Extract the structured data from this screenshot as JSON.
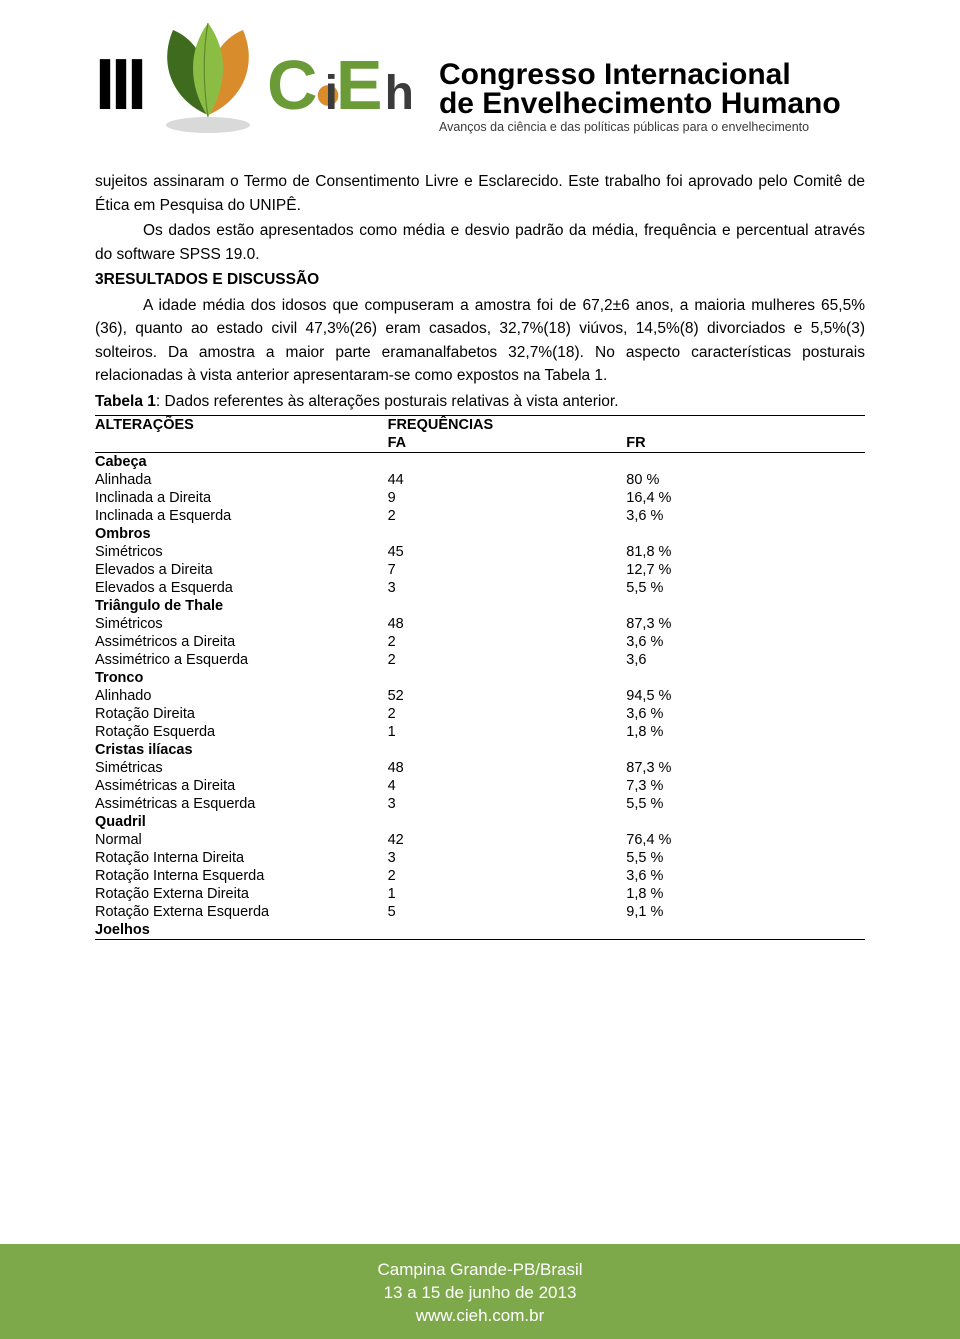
{
  "header": {
    "roman": "III",
    "brand_c": "C",
    "brand_i_lower": "i",
    "brand_e": "E",
    "brand_h": "h",
    "congress_line1": "Congresso Internacional",
    "congress_line2": "de Envelhecimento Humano",
    "congress_sub": "Avanços da ciência e das políticas públicas para o envelhecimento",
    "leaf_colors": {
      "green_dark": "#3f6b1f",
      "green_light": "#8bbd45",
      "orange": "#d98c2b",
      "shadow": "#bfbfbf"
    }
  },
  "body": {
    "p1": "sujeitos assinaram o Termo de Consentimento Livre e Esclarecido. Este trabalho foi aprovado pelo Comitê de Ética em Pesquisa do UNIPÊ.",
    "p2": "Os dados estão apresentados como média e desvio padrão da média, frequência e percentual através do software SPSS 19.0.",
    "section_title": "3RESULTADOS E DISCUSSÃO",
    "p3": "A idade média dos idosos que compuseram a amostra foi de 67,2±6 anos, a maioria mulheres 65,5%(36), quanto ao estado civil 47,3%(26) eram casados, 32,7%(18) viúvos, 14,5%(8) divorciados e 5,5%(3) solteiros. Da amostra a maior parte eramanalfabetos 32,7%(18). No aspecto características posturais relacionadas à vista anterior apresentaram-se como expostos na Tabela 1.",
    "table_caption_bold": "Tabela 1",
    "table_caption_rest": ": Dados referentes às alterações posturais relativas à vista anterior."
  },
  "table": {
    "header_alt": "ALTERAÇÕES",
    "header_freq": "FREQUÊNCIAS",
    "header_fa": "FA",
    "header_fr": "FR",
    "groups": [
      {
        "name": "Cabeça",
        "rows": [
          {
            "label": "Alinhada",
            "fa": "44",
            "fr": "80 %"
          },
          {
            "label": "Inclinada a Direita",
            "fa": "9",
            "fr": "16,4 %"
          },
          {
            "label": "Inclinada a Esquerda",
            "fa": "2",
            "fr": "3,6 %"
          }
        ]
      },
      {
        "name": "Ombros",
        "rows": [
          {
            "label": "Simétricos",
            "fa": "45",
            "fr": "81,8 %"
          },
          {
            "label": "Elevados a Direita",
            "fa": "7",
            "fr": "12,7 %"
          },
          {
            "label": "Elevados a Esquerda",
            "fa": "3",
            "fr": "5,5 %"
          }
        ]
      },
      {
        "name": "Triângulo de Thale",
        "rows": [
          {
            "label": "Simétricos",
            "fa": "48",
            "fr": "87,3 %"
          },
          {
            "label": "Assimétricos a Direita",
            "fa": "2",
            "fr": "3,6 %"
          },
          {
            "label": "Assimétrico a Esquerda",
            "fa": "2",
            "fr": "3,6"
          }
        ]
      },
      {
        "name": "Tronco",
        "rows": [
          {
            "label": "Alinhado",
            "fa": "52",
            "fr": "94,5 %"
          },
          {
            "label": "Rotação Direita",
            "fa": "2",
            "fr": "3,6 %"
          },
          {
            "label": "Rotação Esquerda",
            "fa": "1",
            "fr": "1,8 %"
          }
        ]
      },
      {
        "name": "Cristas ilíacas",
        "rows": [
          {
            "label": "Simétricas",
            "fa": "48",
            "fr": "87,3 %"
          },
          {
            "label": "Assimétricas a Direita",
            "fa": "4",
            "fr": "7,3 %"
          },
          {
            "label": "Assimétricas a Esquerda",
            "fa": "3",
            "fr": "5,5 %"
          }
        ]
      },
      {
        "name": "Quadril",
        "rows": [
          {
            "label": "Normal",
            "fa": "42",
            "fr": "76,4 %"
          },
          {
            "label": "Rotação Interna Direita",
            "fa": "3",
            "fr": "5,5 %"
          },
          {
            "label": "Rotação Interna Esquerda",
            "fa": "2",
            "fr": "3,6 %"
          },
          {
            "label": "Rotação Externa Direita",
            "fa": "1",
            "fr": "1,8 %"
          },
          {
            "label": "Rotação Externa Esquerda",
            "fa": "5",
            "fr": "9,1 %"
          }
        ]
      },
      {
        "name": "Joelhos",
        "rows": []
      }
    ]
  },
  "footer": {
    "line1": "Campina Grande-PB/Brasil",
    "line2": "13 a 15 de junho de 2013",
    "line3": "www.cieh.com.br",
    "bg": "#7ea94a"
  }
}
